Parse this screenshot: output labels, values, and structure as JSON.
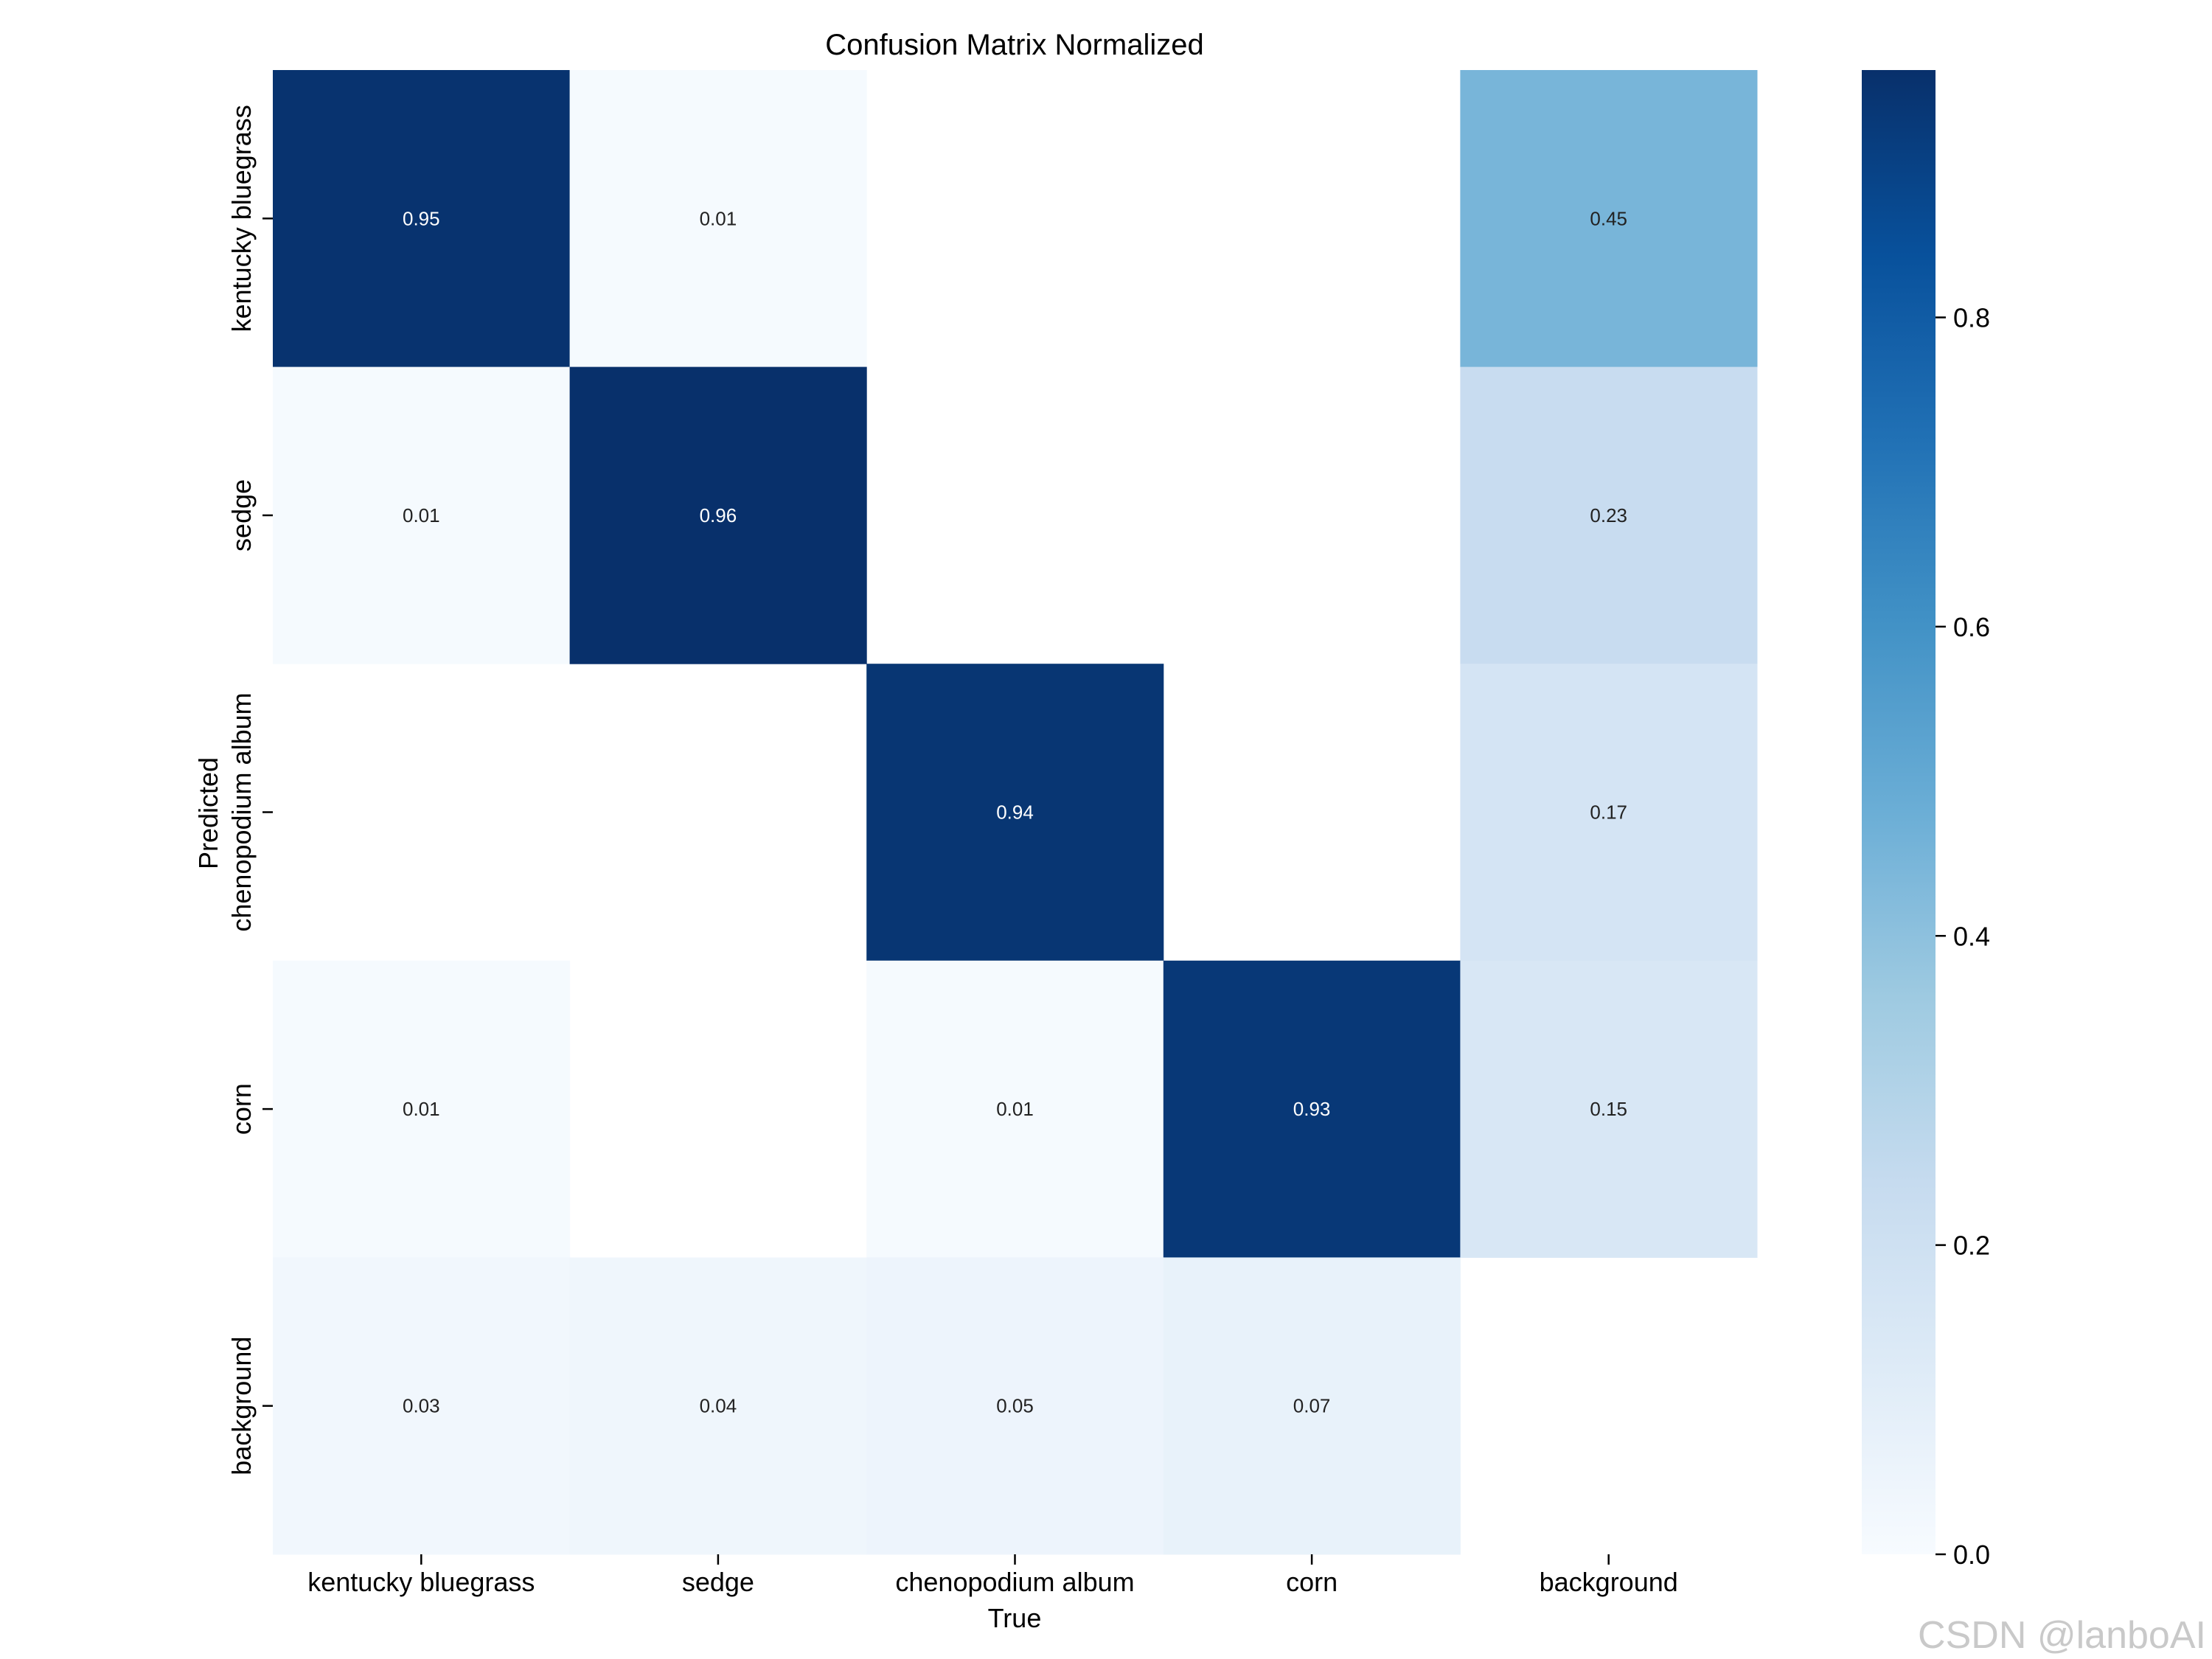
{
  "chart_data": {
    "type": "heatmap",
    "title": "Confusion Matrix Normalized",
    "xlabel": "True",
    "ylabel": "Predicted",
    "x_categories": [
      "kentucky bluegrass",
      "sedge",
      "chenopodium album",
      "corn",
      "background"
    ],
    "y_categories": [
      "kentucky bluegrass",
      "sedge",
      "chenopodium album",
      "corn",
      "background"
    ],
    "values": [
      [
        0.95,
        0.01,
        null,
        null,
        0.45
      ],
      [
        0.01,
        0.96,
        null,
        null,
        0.23
      ],
      [
        null,
        null,
        0.94,
        null,
        0.17
      ],
      [
        0.01,
        null,
        0.01,
        0.93,
        0.15
      ],
      [
        0.03,
        0.04,
        0.05,
        0.07,
        null
      ]
    ],
    "colormap": "Blues",
    "vmin": 0,
    "vmax": 0.96,
    "colorbar_ticks": [
      0.0,
      0.2,
      0.4,
      0.6,
      0.8
    ],
    "colorbar_tick_labels": [
      "0.0",
      "0.2",
      "0.4",
      "0.6",
      "0.8"
    ]
  },
  "watermark": "CSDN @lanboAI"
}
